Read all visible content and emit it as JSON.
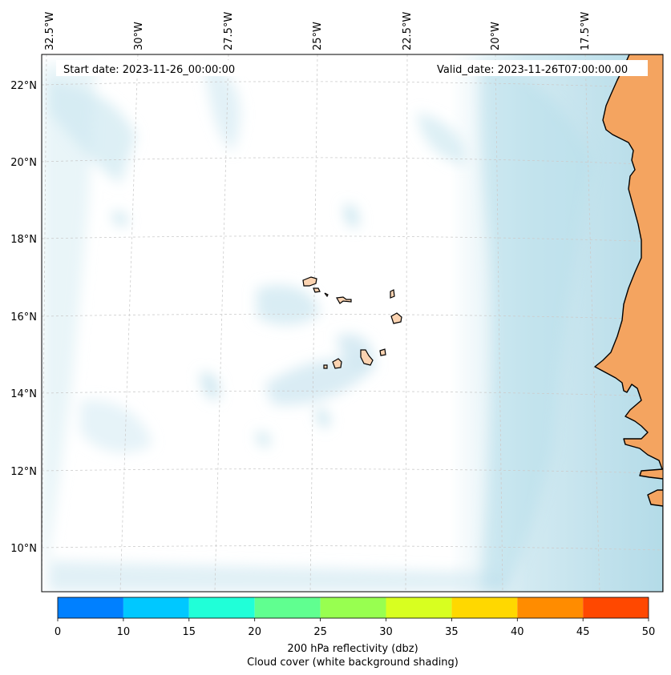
{
  "map": {
    "start_label": "Start date: 2023-11-26_00:00:00",
    "valid_label": "Valid_date: 2023-11-26T07:00:00.00",
    "lon_labels": [
      "32.5°W",
      "30°W",
      "27.5°W",
      "25°W",
      "22.5°W",
      "20°W",
      "17.5°W"
    ],
    "lat_labels": [
      "22°N",
      "20°N",
      "18°N",
      "16°N",
      "14°N",
      "12°N",
      "10°N"
    ],
    "colors": {
      "land_africa": "#f4a460",
      "land_islands": "#fbd3b1",
      "coast": "#000000",
      "cloud": "#add8e6",
      "grid": "#cccccc"
    }
  },
  "colorbar": {
    "ticks": [
      "0",
      "10",
      "15",
      "20",
      "25",
      "30",
      "35",
      "40",
      "45",
      "50"
    ],
    "colors": [
      "#0080ff",
      "#00c8ff",
      "#20ffd8",
      "#60ff90",
      "#98ff50",
      "#d8ff20",
      "#ffd800",
      "#ff8c00",
      "#ff4800"
    ],
    "label_line1": "200 hPa reflectivity (dbz)",
    "label_line2": "Cloud cover (white background shading)"
  }
}
